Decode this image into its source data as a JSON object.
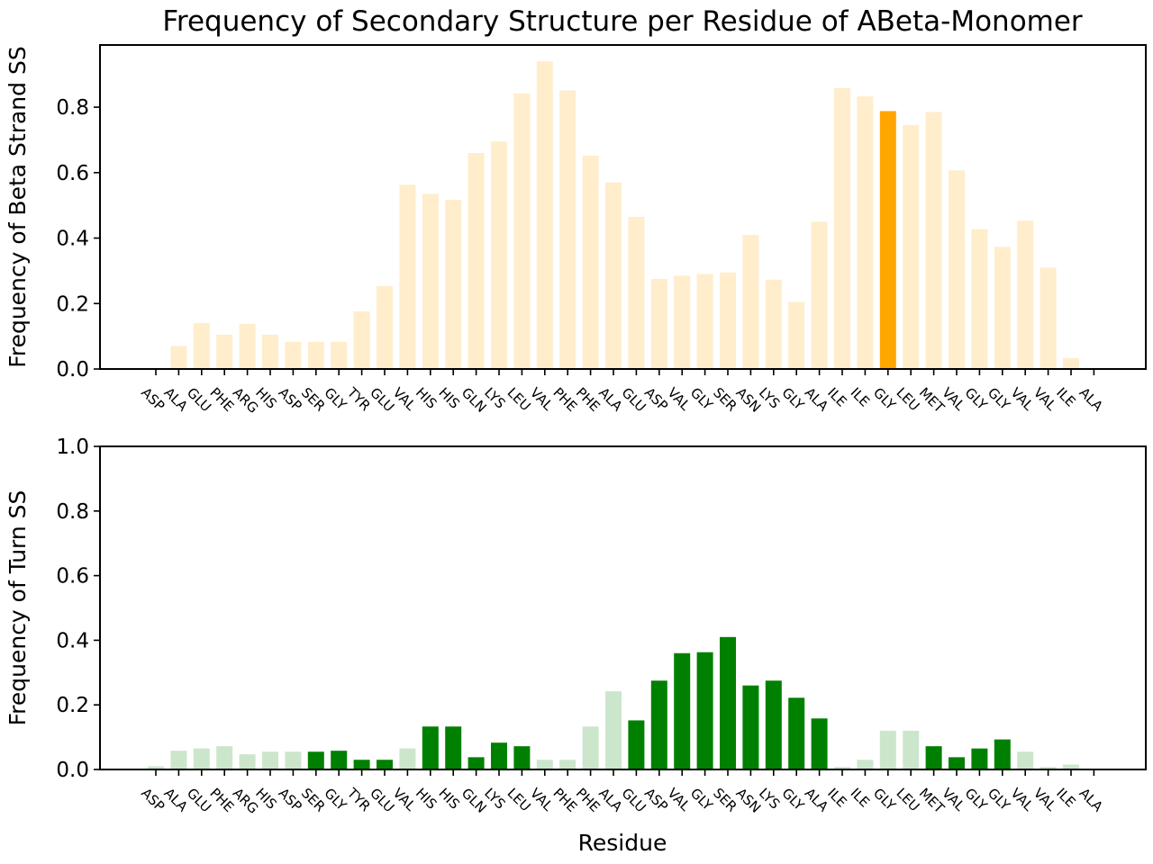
{
  "title": "Frequency of Secondary Structure per Residue of ABeta-Monomer",
  "chart_data": [
    {
      "type": "bar",
      "ylabel": "Frequency of Beta Strand SS",
      "xlabel": "",
      "ylim": [
        0,
        0.99
      ],
      "yticks": [
        "0.0",
        "0.2",
        "0.4",
        "0.6",
        "0.8"
      ],
      "ytick_values": [
        0,
        0.2,
        0.4,
        0.6,
        0.8
      ],
      "grid": false,
      "categories": [
        "ASP",
        "ALA",
        "GLU",
        "PHE",
        "ARG",
        "HIS",
        "ASP",
        "SER",
        "GLY",
        "TYR",
        "GLU",
        "VAL",
        "HIS",
        "HIS",
        "GLN",
        "LYS",
        "LEU",
        "VAL",
        "PHE",
        "PHE",
        "ALA",
        "GLU",
        "ASP",
        "VAL",
        "GLY",
        "SER",
        "ASN",
        "LYS",
        "GLY",
        "ALA",
        "ILE",
        "ILE",
        "GLY",
        "LEU",
        "MET",
        "VAL",
        "GLY",
        "GLY",
        "VAL",
        "VAL",
        "ILE",
        "ALA"
      ],
      "values": [
        0.0,
        0.07,
        0.14,
        0.105,
        0.138,
        0.105,
        0.083,
        0.083,
        0.083,
        0.176,
        0.253,
        0.563,
        0.535,
        0.517,
        0.66,
        0.695,
        0.842,
        0.94,
        0.851,
        0.652,
        0.57,
        0.465,
        0.275,
        0.285,
        0.29,
        0.295,
        0.41,
        0.273,
        0.205,
        0.45,
        0.858,
        0.833,
        0.788,
        0.745,
        0.785,
        0.607,
        0.427,
        0.373,
        0.453,
        0.31,
        0.033,
        0.0
      ],
      "highlight_index": 32,
      "colors": {
        "base": "#ffedcc",
        "highlight": "#ffa500"
      }
    },
    {
      "type": "bar",
      "ylabel": "Frequency of Turn SS",
      "xlabel": "Residue",
      "ylim": [
        0,
        1.0
      ],
      "yticks": [
        "0.0",
        "0.2",
        "0.4",
        "0.6",
        "0.8",
        "1.0"
      ],
      "ytick_values": [
        0,
        0.2,
        0.4,
        0.6,
        0.8,
        1.0
      ],
      "grid": false,
      "categories": [
        "ASP",
        "ALA",
        "GLU",
        "PHE",
        "ARG",
        "HIS",
        "ASP",
        "SER",
        "GLY",
        "TYR",
        "GLU",
        "VAL",
        "HIS",
        "HIS",
        "GLN",
        "LYS",
        "LEU",
        "VAL",
        "PHE",
        "PHE",
        "ALA",
        "GLU",
        "ASP",
        "VAL",
        "GLY",
        "SER",
        "ASN",
        "LYS",
        "GLY",
        "ALA",
        "ILE",
        "ILE",
        "GLY",
        "LEU",
        "MET",
        "VAL",
        "GLY",
        "GLY",
        "VAL",
        "VAL",
        "ILE",
        "ALA"
      ],
      "values": [
        0.01,
        0.058,
        0.065,
        0.072,
        0.047,
        0.055,
        0.055,
        0.055,
        0.058,
        0.03,
        0.03,
        0.065,
        0.133,
        0.133,
        0.038,
        0.083,
        0.072,
        0.03,
        0.03,
        0.133,
        0.242,
        0.152,
        0.275,
        0.36,
        0.363,
        0.41,
        0.26,
        0.275,
        0.222,
        0.158,
        0.008,
        0.03,
        0.12,
        0.12,
        0.072,
        0.038,
        0.065,
        0.093,
        0.055,
        0.008,
        0.015,
        0.0
      ],
      "dark": [
        false,
        false,
        false,
        false,
        false,
        false,
        false,
        true,
        true,
        true,
        true,
        false,
        true,
        true,
        true,
        true,
        true,
        false,
        false,
        false,
        false,
        true,
        true,
        true,
        true,
        true,
        true,
        true,
        true,
        true,
        false,
        false,
        false,
        false,
        true,
        true,
        true,
        true,
        false,
        false,
        false,
        false
      ],
      "colors": {
        "dark": "#008000",
        "light": "#cce6cc"
      }
    }
  ]
}
